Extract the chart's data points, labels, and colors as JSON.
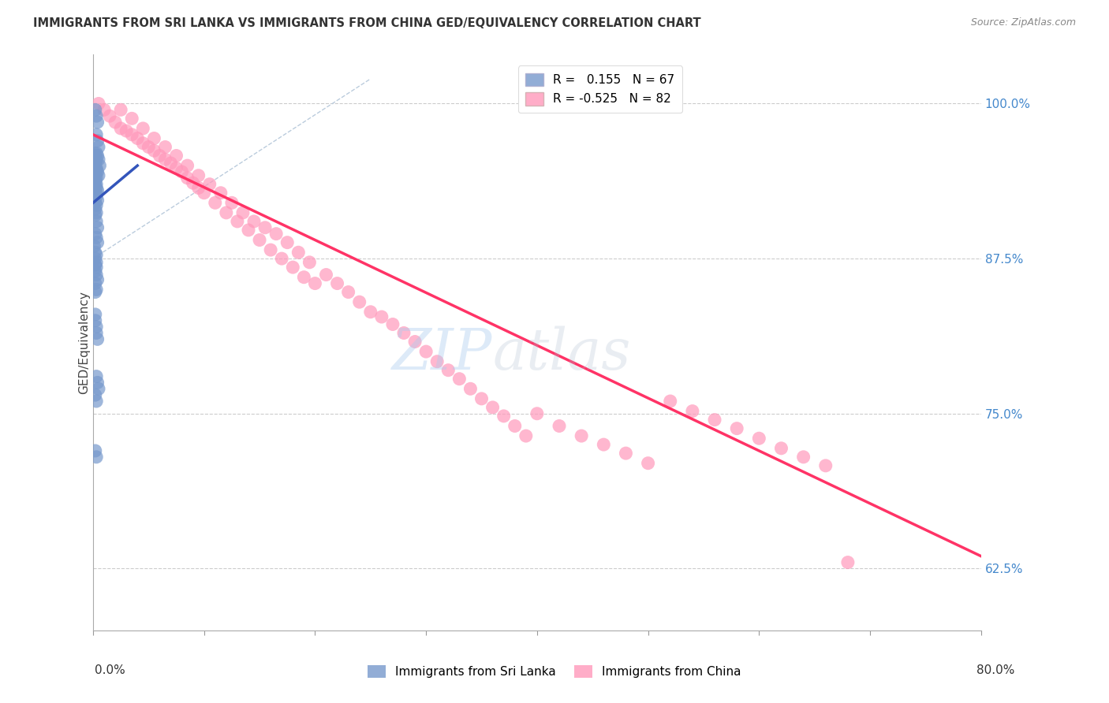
{
  "title": "IMMIGRANTS FROM SRI LANKA VS IMMIGRANTS FROM CHINA GED/EQUIVALENCY CORRELATION CHART",
  "source": "Source: ZipAtlas.com",
  "ylabel": "GED/Equivalency",
  "ytick_labels": [
    "100.0%",
    "87.5%",
    "75.0%",
    "62.5%"
  ],
  "ytick_values": [
    1.0,
    0.875,
    0.75,
    0.625
  ],
  "xlim": [
    0.0,
    0.8
  ],
  "ylim": [
    0.575,
    1.04
  ],
  "sri_lanka_R": 0.155,
  "sri_lanka_N": 67,
  "china_R": -0.525,
  "china_N": 82,
  "sri_lanka_color": "#7799CC",
  "china_color": "#FF99BB",
  "sri_lanka_line_color": "#3355BB",
  "china_line_color": "#FF3366",
  "legend_title_sri_lanka": "Immigrants from Sri Lanka",
  "legend_title_china": "Immigrants from China",
  "watermark_zip": "ZIP",
  "watermark_atlas": "atlas",
  "sri_lanka_x": [
    0.002,
    0.003,
    0.004,
    0.003,
    0.004,
    0.005,
    0.003,
    0.004,
    0.005,
    0.006,
    0.002,
    0.003,
    0.002,
    0.003,
    0.002,
    0.003,
    0.004,
    0.002,
    0.003,
    0.004,
    0.002,
    0.003,
    0.002,
    0.003,
    0.002,
    0.003,
    0.004,
    0.002,
    0.003,
    0.004,
    0.001,
    0.002,
    0.003,
    0.002,
    0.003,
    0.002,
    0.003,
    0.002,
    0.003,
    0.004,
    0.002,
    0.003,
    0.002,
    0.001,
    0.002,
    0.003,
    0.002,
    0.003,
    0.004,
    0.005,
    0.001,
    0.002,
    0.002,
    0.003,
    0.003,
    0.002,
    0.002,
    0.003,
    0.003,
    0.004,
    0.003,
    0.004,
    0.005,
    0.002,
    0.003,
    0.002,
    0.003
  ],
  "sri_lanka_y": [
    0.995,
    0.99,
    0.985,
    0.975,
    0.97,
    0.965,
    0.96,
    0.958,
    0.955,
    0.95,
    0.948,
    0.945,
    0.942,
    0.94,
    0.938,
    0.935,
    0.93,
    0.928,
    0.925,
    0.922,
    0.92,
    0.918,
    0.915,
    0.912,
    0.91,
    0.905,
    0.9,
    0.895,
    0.892,
    0.888,
    0.885,
    0.88,
    0.878,
    0.875,
    0.872,
    0.87,
    0.868,
    0.865,
    0.862,
    0.858,
    0.855,
    0.85,
    0.848,
    0.96,
    0.958,
    0.955,
    0.952,
    0.948,
    0.945,
    0.942,
    0.94,
    0.938,
    0.935,
    0.932,
    0.928,
    0.83,
    0.825,
    0.82,
    0.815,
    0.81,
    0.78,
    0.775,
    0.77,
    0.765,
    0.76,
    0.72,
    0.715
  ],
  "china_x": [
    0.005,
    0.01,
    0.015,
    0.02,
    0.025,
    0.03,
    0.035,
    0.04,
    0.045,
    0.05,
    0.055,
    0.06,
    0.065,
    0.07,
    0.075,
    0.08,
    0.085,
    0.09,
    0.095,
    0.1,
    0.11,
    0.12,
    0.13,
    0.14,
    0.15,
    0.16,
    0.17,
    0.18,
    0.19,
    0.2,
    0.025,
    0.035,
    0.045,
    0.055,
    0.065,
    0.075,
    0.085,
    0.095,
    0.105,
    0.115,
    0.125,
    0.135,
    0.145,
    0.155,
    0.165,
    0.175,
    0.185,
    0.195,
    0.21,
    0.22,
    0.23,
    0.24,
    0.25,
    0.26,
    0.27,
    0.28,
    0.29,
    0.3,
    0.31,
    0.32,
    0.33,
    0.34,
    0.35,
    0.36,
    0.37,
    0.38,
    0.39,
    0.4,
    0.42,
    0.44,
    0.46,
    0.48,
    0.5,
    0.52,
    0.54,
    0.56,
    0.58,
    0.6,
    0.62,
    0.64,
    0.66,
    0.68
  ],
  "china_y": [
    1.0,
    0.995,
    0.99,
    0.985,
    0.98,
    0.978,
    0.975,
    0.972,
    0.968,
    0.965,
    0.962,
    0.958,
    0.955,
    0.952,
    0.948,
    0.945,
    0.94,
    0.936,
    0.932,
    0.928,
    0.92,
    0.912,
    0.905,
    0.898,
    0.89,
    0.882,
    0.875,
    0.868,
    0.86,
    0.855,
    0.995,
    0.988,
    0.98,
    0.972,
    0.965,
    0.958,
    0.95,
    0.942,
    0.935,
    0.928,
    0.92,
    0.912,
    0.905,
    0.9,
    0.895,
    0.888,
    0.88,
    0.872,
    0.862,
    0.855,
    0.848,
    0.84,
    0.832,
    0.828,
    0.822,
    0.815,
    0.808,
    0.8,
    0.792,
    0.785,
    0.778,
    0.77,
    0.762,
    0.755,
    0.748,
    0.74,
    0.732,
    0.75,
    0.74,
    0.732,
    0.725,
    0.718,
    0.71,
    0.76,
    0.752,
    0.745,
    0.738,
    0.73,
    0.722,
    0.715,
    0.708,
    0.63
  ],
  "china_trend_x0": 0.0,
  "china_trend_x1": 0.8,
  "china_trend_y0": 0.975,
  "china_trend_y1": 0.635,
  "sl_trend_x0": 0.0,
  "sl_trend_x1": 0.04,
  "sl_trend_y0": 0.92,
  "sl_trend_y1": 0.95,
  "ref_line_x0": 0.0,
  "ref_line_x1": 0.25,
  "ref_line_y0": 0.875,
  "ref_line_y1": 1.02
}
